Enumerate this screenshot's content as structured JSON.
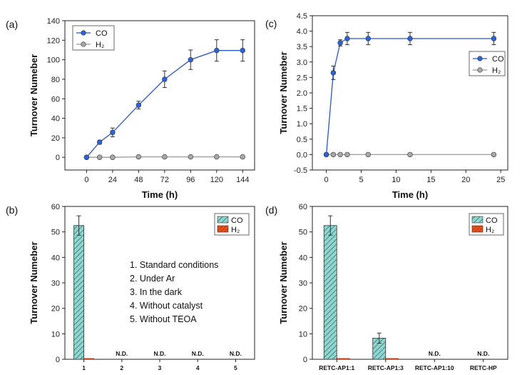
{
  "colors": {
    "co_line": "#2a56c6",
    "co_marker": "#2e63d8",
    "h2_line": "#999999",
    "h2_marker": "#a8a8a8",
    "co_bar": "#8fd6d0",
    "h2_bar": "#e8501e"
  },
  "chart_data": [
    {
      "panel_label": "(a)",
      "type": "line",
      "xlabel": "Time (h)",
      "ylabel": "Turnover Numeber",
      "xlim": [
        -20,
        155
      ],
      "ylim": [
        -13,
        140
      ],
      "xticks": [
        0,
        24,
        48,
        72,
        96,
        120,
        144
      ],
      "yticks": [
        0,
        20,
        40,
        60,
        80,
        100,
        120,
        140
      ],
      "legend": {
        "position": "top-left",
        "entries": [
          "CO",
          "H₂"
        ]
      },
      "series": [
        {
          "name": "CO",
          "x": [
            0,
            12,
            24,
            48,
            72,
            96,
            120,
            144
          ],
          "y": [
            0,
            15.5,
            25.5,
            53.5,
            80,
            100,
            109.5,
            109.5
          ],
          "err": [
            0,
            2,
            4.5,
            4,
            8.5,
            10,
            11,
            11
          ]
        },
        {
          "name": "H₂",
          "x": [
            0,
            12,
            24,
            48,
            72,
            96,
            120,
            144
          ],
          "y": [
            0,
            0,
            0,
            0.5,
            0.5,
            0.5,
            0.5,
            0.5
          ],
          "err": [
            0,
            0,
            0,
            0,
            0,
            0,
            0,
            0
          ]
        }
      ]
    },
    {
      "panel_label": "(b)",
      "type": "bar",
      "xlabel": "",
      "ylabel": "Turnover Numeber",
      "ylim": [
        0,
        60
      ],
      "yticks": [
        0,
        10,
        20,
        30,
        40,
        50,
        60
      ],
      "categories": [
        "1",
        "2",
        "3",
        "4",
        "5"
      ],
      "legend": {
        "position": "top-right",
        "entries": [
          "CO",
          "H₂"
        ]
      },
      "series": [
        {
          "name": "CO",
          "values": [
            52.5,
            0,
            0,
            0,
            0
          ],
          "err": [
            3.8,
            0,
            0,
            0,
            0
          ]
        },
        {
          "name": "H₂",
          "values": [
            0.3,
            0,
            0,
            0,
            0
          ],
          "err": [
            0,
            0,
            0,
            0,
            0
          ]
        }
      ],
      "annotations": [
        "",
        "N.D.",
        "N.D.",
        "N.D.",
        "N.D."
      ],
      "notes": [
        "1.   Standard conditions",
        "2.   Under Ar",
        "3.   In the dark",
        "4.   Without catalyst",
        "5.   Without TEOA"
      ]
    },
    {
      "panel_label": "(c)",
      "type": "line",
      "xlabel": "Time (h)",
      "ylabel": "Turnover Numeber",
      "xlim": [
        -2,
        26
      ],
      "ylim": [
        -0.5,
        4.5
      ],
      "xticks": [
        0,
        5,
        10,
        15,
        20,
        25
      ],
      "yticks": [
        "-0.5",
        "0.0",
        "0.5",
        "1.0",
        "1.5",
        "2.0",
        "2.5",
        "3.0",
        "3.5",
        "4.0",
        "4.5"
      ],
      "legend": {
        "position": "right",
        "entries": [
          "CO",
          "H₂"
        ]
      },
      "series": [
        {
          "name": "CO",
          "x": [
            0,
            1,
            2,
            3,
            6,
            12,
            24
          ],
          "y": [
            0,
            2.65,
            3.62,
            3.76,
            3.76,
            3.76,
            3.76
          ],
          "err": [
            0,
            0.22,
            0.1,
            0.2,
            0.2,
            0.2,
            0.2
          ]
        },
        {
          "name": "H₂",
          "x": [
            0,
            1,
            2,
            3,
            6,
            12,
            24
          ],
          "y": [
            0,
            0,
            0,
            0,
            0,
            0,
            0
          ],
          "err": [
            0,
            0,
            0,
            0,
            0,
            0,
            0
          ]
        }
      ]
    },
    {
      "panel_label": "(d)",
      "type": "bar",
      "xlabel": "",
      "ylabel": "Turnover Numeber",
      "ylim": [
        0,
        60
      ],
      "yticks": [
        0,
        10,
        20,
        30,
        40,
        50,
        60
      ],
      "categories": [
        "RETC-AP1:1",
        "RETC-AP1:3",
        "RETC-AP1:10",
        "RETC-HP"
      ],
      "legend": {
        "position": "top-right",
        "entries": [
          "CO",
          "H₂"
        ]
      },
      "series": [
        {
          "name": "CO",
          "values": [
            52.5,
            8.3,
            0,
            0
          ],
          "err": [
            3.8,
            2,
            0,
            0
          ]
        },
        {
          "name": "H₂",
          "values": [
            0.3,
            0.3,
            0,
            0
          ],
          "err": [
            0,
            0,
            0,
            0
          ]
        }
      ],
      "annotations": [
        "",
        "",
        "N.D.",
        "N.D."
      ]
    }
  ]
}
